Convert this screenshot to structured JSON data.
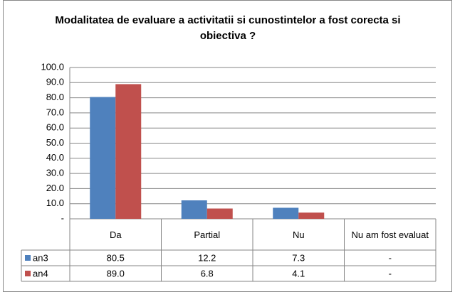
{
  "chart_data": {
    "type": "bar",
    "title": "Modalitatea de evaluare a activitatii si cunostintelor a fost corecta si obiectiva ?",
    "categories": [
      "Da",
      "Partial",
      "Nu",
      "Nu am fost evaluat"
    ],
    "series": [
      {
        "name": "an3",
        "color": "#4f81bd",
        "values": [
          80.5,
          12.2,
          7.3,
          null
        ],
        "value_labels": [
          "80.5",
          "12.2",
          "7.3",
          "-"
        ]
      },
      {
        "name": "an4",
        "color": "#c0504d",
        "values": [
          89.0,
          6.8,
          4.1,
          null
        ],
        "value_labels": [
          "89.0",
          "6.8",
          "4.1",
          "-"
        ]
      }
    ],
    "ylim": [
      0,
      100
    ],
    "yticks": [
      {
        "value": 0,
        "label": "-"
      },
      {
        "value": 10,
        "label": "10.0"
      },
      {
        "value": 20,
        "label": "20.0"
      },
      {
        "value": 30,
        "label": "30.0"
      },
      {
        "value": 40,
        "label": "40.0"
      },
      {
        "value": 50,
        "label": "50.0"
      },
      {
        "value": 60,
        "label": "60.0"
      },
      {
        "value": 70,
        "label": "70.0"
      },
      {
        "value": 80,
        "label": "80.0"
      },
      {
        "value": 90,
        "label": "90.0"
      },
      {
        "value": 100,
        "label": "100.0"
      }
    ],
    "grid": true
  }
}
